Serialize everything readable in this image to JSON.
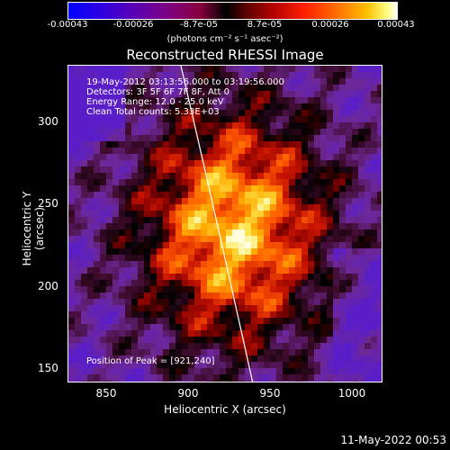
{
  "colorbar": {
    "ticks": [
      "-0.00043",
      "-0.00026",
      "-8.7e-05",
      "8.7e-05",
      "0.00026",
      "0.00043"
    ],
    "units": "(photons cm⁻² s⁻¹ asec⁻²)"
  },
  "plot": {
    "title": "Reconstructed RHESSI Image",
    "annotations": {
      "time_range": "19-May-2012 03:13:56.000 to 03:19:56.000",
      "detectors": "Detectors: 3F 5F 6F 7F 8F, Att 0",
      "energy_range": "Energy Range: 12.0 - 25.0 keV",
      "clean_counts": "Clean     Total counts: 5.33E+03",
      "peak_position": "Position of Peak = [921,240]"
    },
    "xlabel": "Heliocentric X (arcsec)",
    "ylabel": "Heliocentric Y (arcsec)",
    "xticks": [
      "850",
      "900",
      "950",
      "1000"
    ],
    "yticks": [
      "300",
      "250",
      "200",
      "150"
    ]
  },
  "footer": {
    "timestamp": "11-May-2022 00:53"
  }
}
